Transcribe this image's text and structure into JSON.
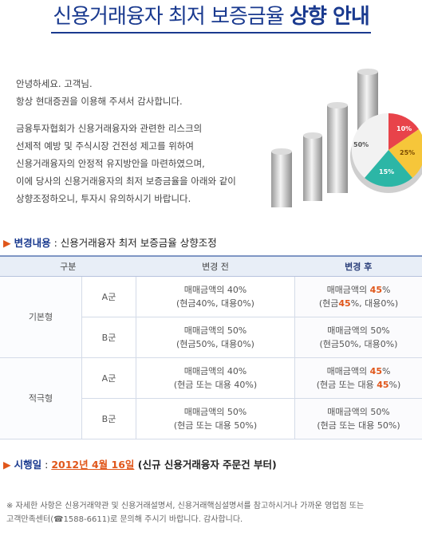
{
  "header": {
    "title_normal": "신용거래융자 최저 보증금율 ",
    "title_bold": "상향 안내"
  },
  "greeting": {
    "line1": "안녕하세요. 고객님.",
    "line2": "항상 현대증권을 이용해 주셔서 감사합니다."
  },
  "intro": {
    "lines": [
      "금융투자협회가 신용거래융자와 관련한 리스크의",
      "선제적 예방 및 주식시장 건전성 제고를 위하여",
      "신용거래융자의 안정적 유지방안을 마련하였으며,",
      "이에 당사의 신용거래융자의 최저 보증금율을 아래와 같이",
      "상향조정하오니, 투자시 유의하시기 바랍니다."
    ]
  },
  "illustration": {
    "pie_labels": [
      "10%",
      "25%",
      "15%",
      "50%"
    ],
    "colors": {
      "red": "#e8434a",
      "yellow": "#f6c63a",
      "teal": "#2cb6a6",
      "white": "#f2f2f2"
    }
  },
  "section1": {
    "arrow": "▶",
    "label": "변경내용",
    "text": " : 신용거래융자 최저 보증금율 상향조정"
  },
  "table": {
    "headers": [
      "구분",
      "변경 전",
      "변경 후"
    ],
    "groups": [
      {
        "name": "기본형",
        "rows": [
          {
            "sub": "A군",
            "before_l1": "매매금액의 40%",
            "before_l2": "(현금40%, 대용0%)",
            "after_l1_a": "매매금액의 ",
            "after_l1_hl": "45",
            "after_l1_b": "%",
            "after_l2_a": "(현금",
            "after_l2_hl": "45",
            "after_l2_b": "%, 대용0%)"
          },
          {
            "sub": "B군",
            "before_l1": "매매금액의 50%",
            "before_l2": "(현금50%, 대용0%)",
            "after_l1": "매매금액의 50%",
            "after_l2": "(현금50%, 대용0%)"
          }
        ]
      },
      {
        "name": "적극형",
        "rows": [
          {
            "sub": "A군",
            "before_l1": "매매금액의 40%",
            "before_l2": "(현금 또는 대용 40%)",
            "after_l1_a": "매매금액의 ",
            "after_l1_hl": "45",
            "after_l1_b": "%",
            "after_l2_a": "(현금 또는 대용 ",
            "after_l2_hl": "45",
            "after_l2_b": "%)"
          },
          {
            "sub": "B군",
            "before_l1": "매매금액의 50%",
            "before_l2": "(현금 또는 대용 50%)",
            "after_l1": "매매금액의 50%",
            "after_l2": "(현금 또는 대용 50%)"
          }
        ]
      }
    ]
  },
  "section2": {
    "arrow": "▶",
    "label": "시행일",
    "sep": " : ",
    "date": "2012년 4월 16일",
    "note": " (신규 신용거래융자 주문건 부터)"
  },
  "footnote": {
    "line1": "※ 자세한 사항은 신용거래약관 및 신용거래설명서, 신용거래핵심설명서를 참고하시거나 가까운 영업점 또는",
    "line2": "고객만족센터(☎1588-6611)로 문의해 주시기 바랍니다. 감사합니다."
  }
}
